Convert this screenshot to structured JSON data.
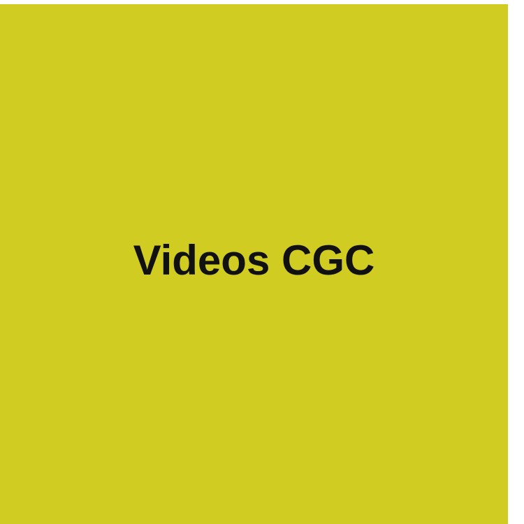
{
  "tile": {
    "title": "Videos CGC",
    "background_color": "#D1CC22",
    "text_color": "#111111"
  }
}
